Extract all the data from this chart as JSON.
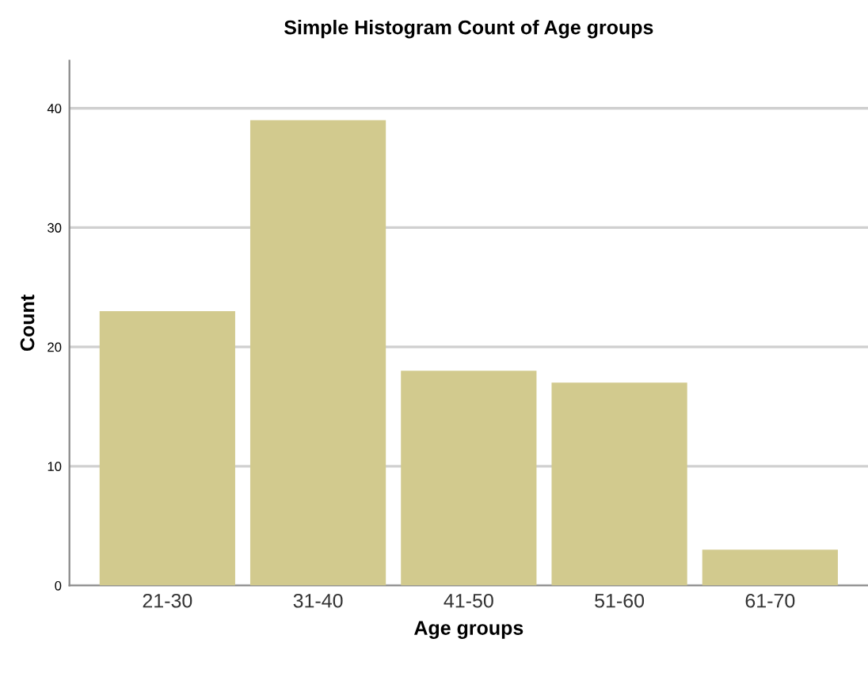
{
  "chart_data": {
    "type": "bar",
    "title": "Simple Histogram Count of Age groups",
    "xlabel": "Age groups",
    "ylabel": "Count",
    "categories": [
      "21-30",
      "31-40",
      "41-50",
      "51-60",
      "61-70"
    ],
    "values": [
      23,
      39,
      18,
      17,
      3
    ],
    "color": "#d2ca8e",
    "ylim": [
      0,
      44
    ],
    "yticks": [
      0,
      10,
      20,
      30,
      40
    ],
    "grid": "y"
  }
}
